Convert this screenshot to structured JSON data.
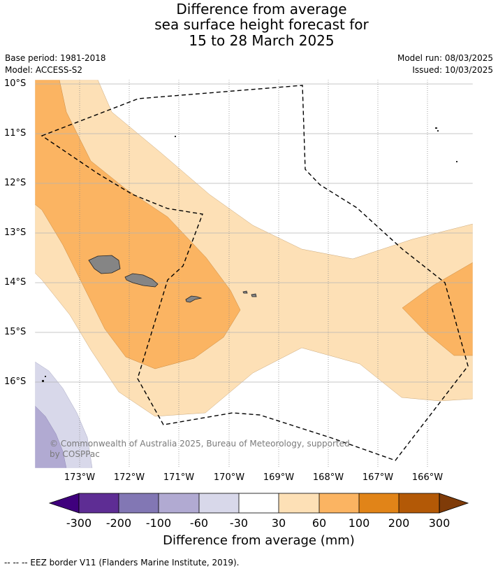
{
  "title": {
    "line1": "Difference from average",
    "line2": "sea surface height forecast for",
    "line3": "15 to 28 March 2025"
  },
  "meta": {
    "base_period": "Base period: 1981-2018",
    "model": "Model: ACCESS-S2",
    "model_run": "Model run: 08/03/2025",
    "issued": "Issued: 10/03/2025"
  },
  "map": {
    "lat_ticks": [
      "10°S",
      "11°S",
      "12°S",
      "13°S",
      "14°S",
      "15°S",
      "16°S"
    ],
    "lon_ticks": [
      "173°W",
      "172°W",
      "171°W",
      "170°W",
      "169°W",
      "168°W",
      "167°W",
      "166°W"
    ],
    "copyright": "© Commonwealth of Australia 2025, Bureau of Meteorology, supported by COSPPac",
    "colors": {
      "land": "#858585",
      "band_30_60": "#fde0b6",
      "band_60_100": "#fbb462",
      "band_neg30_neg60": "#d8d8ea",
      "band_neg60_neg100": "#b1aad2"
    }
  },
  "colorbar": {
    "title": "Difference from average (mm)",
    "labels": [
      "-300",
      "-200",
      "-100",
      "-60",
      "-30",
      "30",
      "60",
      "100",
      "200",
      "300"
    ],
    "colors": [
      "#3f007d",
      "#5e2d94",
      "#8277b4",
      "#b1aad2",
      "#d8d8ea",
      "#ffffff",
      "#fde0b6",
      "#fbb462",
      "#e18418",
      "#b35906",
      "#7f3b08"
    ]
  },
  "footnote": "--  --  -- EEZ border V11 (Flanders Marine Institute, 2019)."
}
